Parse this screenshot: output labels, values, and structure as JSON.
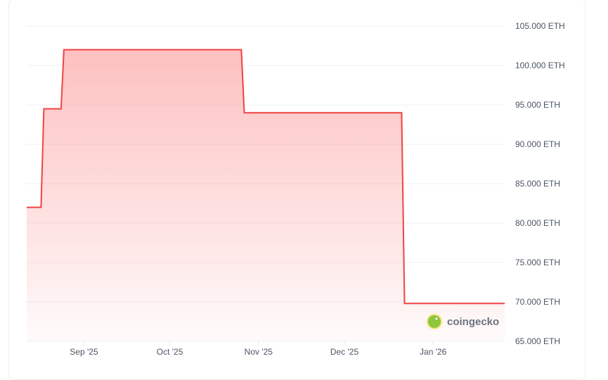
{
  "chart_data": {
    "type": "area",
    "title": "",
    "xlabel": "",
    "ylabel": "",
    "y_unit": "ETH",
    "ylim": [
      65000,
      105000
    ],
    "xlim": [
      "2025-08-12",
      "2026-01-26"
    ],
    "y_ticks": [
      "105.000 ETH",
      "100.000 ETH",
      "95.000 ETH",
      "90.000 ETH",
      "85.000 ETH",
      "80.000 ETH",
      "75.000 ETH",
      "70.000 ETH",
      "65.000 ETH"
    ],
    "y_tick_values": [
      105000,
      100000,
      95000,
      90000,
      85000,
      80000,
      75000,
      70000,
      65000
    ],
    "x_ticks": [
      "Sep '25",
      "Oct '25",
      "Nov '25",
      "Dec '25",
      "Jan '26"
    ],
    "x_tick_dates": [
      "2025-09-01",
      "2025-10-01",
      "2025-11-01",
      "2025-12-01",
      "2026-01-01"
    ],
    "grid": true,
    "line_color": "#ef4444",
    "fill_color": "#fca5a5",
    "series": [
      {
        "step": true,
        "points": [
          {
            "x": "2025-08-12",
            "y": 82000
          },
          {
            "x": "2025-08-17",
            "y": 82000
          },
          {
            "x": "2025-08-18",
            "y": 94500
          },
          {
            "x": "2025-08-24",
            "y": 94500
          },
          {
            "x": "2025-08-25",
            "y": 102000
          },
          {
            "x": "2025-10-26",
            "y": 102000
          },
          {
            "x": "2025-10-27",
            "y": 94000
          },
          {
            "x": "2025-12-21",
            "y": 94000
          },
          {
            "x": "2025-12-22",
            "y": 69800
          },
          {
            "x": "2026-01-26",
            "y": 69800
          }
        ]
      }
    ]
  },
  "watermark": {
    "text": "coingecko"
  }
}
